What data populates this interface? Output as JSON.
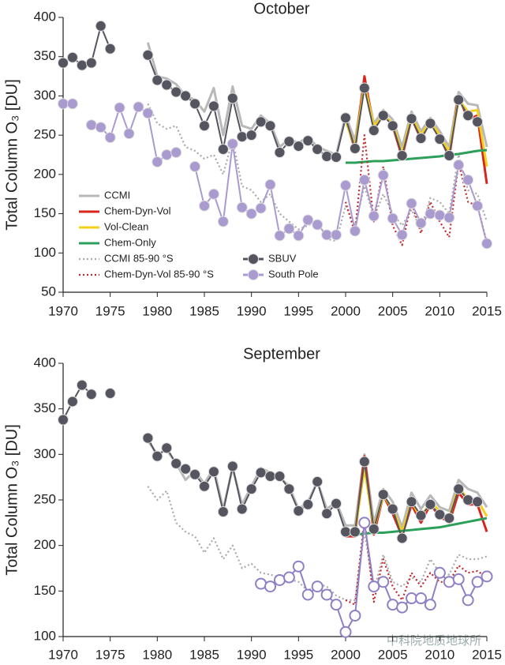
{
  "chart_data": [
    {
      "type": "line",
      "title": "October",
      "ylabel": "Total Column O₃ [DU]",
      "xlim": [
        1970,
        2015
      ],
      "xticks": [
        1970,
        1975,
        1980,
        1985,
        1990,
        1995,
        2000,
        2005,
        2010,
        2015
      ],
      "ylim": [
        50,
        400
      ],
      "yticks": [
        50,
        100,
        150,
        200,
        250,
        300,
        350,
        400
      ],
      "legend": "lower left",
      "series": [
        {
          "name": "CCMI",
          "color": "#b8b8b8",
          "x": [
            1979,
            1980,
            1981,
            1982,
            1983,
            1984,
            1985,
            1986,
            1987,
            1988,
            1989,
            1990,
            1991,
            1992,
            1993,
            1994,
            1995,
            1996,
            1997,
            1998,
            1999,
            2000,
            2001,
            2002,
            2003,
            2004,
            2005,
            2006,
            2007,
            2008,
            2009,
            2010,
            2011,
            2012,
            2013,
            2014,
            2015
          ],
          "values": [
            368,
            325,
            322,
            315,
            300,
            295,
            280,
            310,
            250,
            312,
            262,
            258,
            275,
            265,
            235,
            245,
            240,
            248,
            235,
            230,
            225,
            275,
            243,
            320,
            265,
            282,
            270,
            235,
            280,
            255,
            272,
            255,
            235,
            305,
            290,
            288,
            235
          ]
        },
        {
          "name": "Chem-Dyn-Vol",
          "color": "#d7261e",
          "x": [
            2000,
            2001,
            2002,
            2003,
            2004,
            2005,
            2006,
            2007,
            2008,
            2009,
            2010,
            2011,
            2012,
            2013,
            2014,
            2015
          ],
          "values": [
            270,
            232,
            325,
            258,
            278,
            262,
            222,
            272,
            245,
            268,
            248,
            222,
            300,
            270,
            275,
            188
          ]
        },
        {
          "name": "Vol-Clean",
          "color": "#f2d01c",
          "x": [
            2000,
            2001,
            2002,
            2003,
            2004,
            2005,
            2006,
            2007,
            2008,
            2009,
            2010,
            2011,
            2012,
            2013,
            2014,
            2015
          ],
          "values": [
            268,
            235,
            315,
            262,
            275,
            266,
            226,
            275,
            250,
            268,
            250,
            228,
            295,
            280,
            282,
            210
          ]
        },
        {
          "name": "Chem-Only",
          "color": "#2ca05a",
          "x": [
            2000,
            2001,
            2002,
            2003,
            2004,
            2005,
            2006,
            2007,
            2008,
            2009,
            2010,
            2011,
            2012,
            2013,
            2014,
            2015
          ],
          "values": [
            215,
            215,
            216,
            217,
            217,
            218,
            219,
            220,
            221,
            222,
            223,
            225,
            226,
            228,
            230,
            231
          ]
        },
        {
          "name": "CCMI 85-90 °S",
          "color": "#aaaaaa",
          "dashed": true,
          "x": [
            1979,
            1980,
            1981,
            1982,
            1983,
            1984,
            1985,
            1986,
            1987,
            1988,
            1989,
            1990,
            1991,
            1992,
            1993,
            1994,
            1995,
            1996,
            1997,
            1998,
            1999,
            2000,
            2001,
            2002,
            2003,
            2004,
            2005,
            2006,
            2007,
            2008,
            2009,
            2010,
            2011,
            2012,
            2013,
            2014,
            2015
          ],
          "values": [
            290,
            265,
            258,
            262,
            235,
            230,
            220,
            225,
            200,
            245,
            185,
            180,
            165,
            175,
            150,
            140,
            130,
            135,
            140,
            118,
            115,
            160,
            135,
            185,
            145,
            175,
            150,
            135,
            155,
            130,
            170,
            165,
            150,
            225,
            180,
            175,
            140
          ]
        },
        {
          "name": "Chem-Dyn-Vol 85-90 °S",
          "color": "#c0282d",
          "dashed": true,
          "x": [
            2000,
            2001,
            2002,
            2003,
            2004,
            2005,
            2006,
            2007,
            2008,
            2009,
            2010,
            2011,
            2012,
            2013,
            2014,
            2015
          ],
          "values": [
            165,
            125,
            250,
            140,
            210,
            135,
            110,
            165,
            125,
            165,
            140,
            120,
            215,
            165,
            160,
            113
          ]
        },
        {
          "name": "SBUV",
          "color": "#555560",
          "marker": "filled",
          "x": [
            1970,
            1971,
            1972,
            1973,
            1974,
            1975,
            1976,
            1979,
            1980,
            1981,
            1982,
            1983,
            1984,
            1985,
            1986,
            1987,
            1988,
            1989,
            1990,
            1991,
            1992,
            1993,
            1994,
            1995,
            1996,
            1997,
            1998,
            1999,
            2000,
            2001,
            2002,
            2003,
            2004,
            2005,
            2006,
            2007,
            2008,
            2009,
            2010,
            2011,
            2012,
            2013,
            2014
          ],
          "values": [
            342,
            349,
            339,
            342,
            389,
            360,
            null,
            352,
            320,
            314,
            305,
            300,
            290,
            262,
            287,
            232,
            297,
            248,
            250,
            267,
            262,
            228,
            242,
            236,
            243,
            232,
            223,
            222,
            272,
            233,
            310,
            256,
            275,
            262,
            224,
            271,
            246,
            265,
            245,
            224,
            295,
            275,
            267
          ]
        },
        {
          "name": "South Pole",
          "color": "#a99ad0",
          "marker": "filled",
          "x": [
            1970,
            1971,
            1972,
            1973,
            1974,
            1975,
            1976,
            1977,
            1978,
            1979,
            1980,
            1981,
            1982,
            1983,
            1984,
            1985,
            1986,
            1987,
            1988,
            1989,
            1990,
            1991,
            1992,
            1993,
            1994,
            1995,
            1996,
            1997,
            1998,
            1999,
            2000,
            2001,
            2002,
            2003,
            2004,
            2005,
            2006,
            2007,
            2008,
            2009,
            2010,
            2011,
            2012,
            2013,
            2014,
            2015
          ],
          "values": [
            290,
            290,
            null,
            263,
            260,
            247,
            285,
            252,
            286,
            278,
            216,
            225,
            228,
            null,
            210,
            160,
            175,
            140,
            239,
            158,
            150,
            157,
            187,
            122,
            131,
            122,
            142,
            136,
            123,
            123,
            186,
            128,
            193,
            147,
            199,
            144,
            123,
            163,
            138,
            150,
            148,
            145,
            212,
            193,
            160,
            112
          ]
        }
      ]
    },
    {
      "type": "line",
      "title": "September",
      "ylabel": "Total Column O₃ [DU]",
      "xlim": [
        1970,
        2015
      ],
      "xticks": [
        1970,
        1975,
        1980,
        1985,
        1990,
        1995,
        2000,
        2005,
        2010,
        2015
      ],
      "ylim": [
        100,
        400
      ],
      "yticks": [
        100,
        150,
        200,
        250,
        300,
        350,
        400
      ],
      "series": [
        {
          "color": "#b8b8b8",
          "x": [
            1979,
            1980,
            1981,
            1982,
            1983,
            1984,
            1985,
            1986,
            1987,
            1988,
            1989,
            1990,
            1991,
            1992,
            1993,
            1994,
            1995,
            1996,
            1997,
            1998,
            1999,
            2000,
            2001,
            2002,
            2003,
            2004,
            2005,
            2006,
            2007,
            2008,
            2009,
            2010,
            2011,
            2012,
            2013,
            2014,
            2015
          ],
          "values": [
            315,
            300,
            305,
            290,
            272,
            282,
            268,
            285,
            240,
            285,
            245,
            265,
            285,
            280,
            275,
            265,
            240,
            248,
            270,
            240,
            248,
            222,
            222,
            300,
            225,
            262,
            248,
            220,
            258,
            240,
            255,
            242,
            238,
            272,
            262,
            258,
            242
          ]
        },
        {
          "color": "#d7261e",
          "x": [
            2000,
            2001,
            2002,
            2003,
            2004,
            2005,
            2006,
            2007,
            2008,
            2009,
            2010,
            2011,
            2012,
            2013,
            2014,
            2015
          ],
          "values": [
            210,
            210,
            298,
            212,
            255,
            235,
            210,
            245,
            225,
            245,
            232,
            225,
            258,
            245,
            245,
            215
          ]
        },
        {
          "color": "#f2d01c",
          "x": [
            2000,
            2001,
            2002,
            2003,
            2004,
            2005,
            2006,
            2007,
            2008,
            2009,
            2010,
            2011,
            2012,
            2013,
            2014,
            2015
          ],
          "values": [
            215,
            215,
            285,
            218,
            255,
            240,
            215,
            248,
            230,
            248,
            238,
            230,
            265,
            250,
            250,
            232
          ]
        },
        {
          "color": "#2ca05a",
          "x": [
            2000,
            2001,
            2002,
            2003,
            2004,
            2005,
            2006,
            2007,
            2008,
            2009,
            2010,
            2011,
            2012,
            2013,
            2014,
            2015
          ],
          "values": [
            212,
            212,
            213,
            214,
            214,
            215,
            216,
            217,
            218,
            219,
            220,
            222,
            224,
            226,
            228,
            230
          ]
        },
        {
          "color": "#aaaaaa",
          "dashed": true,
          "x": [
            1979,
            1980,
            1981,
            1982,
            1983,
            1984,
            1985,
            1986,
            1987,
            1988,
            1989,
            1990,
            1991,
            1992,
            1993,
            1994,
            1995,
            1996,
            1997,
            1998,
            1999,
            2000,
            2001,
            2002,
            2003,
            2004,
            2005,
            2006,
            2007,
            2008,
            2009,
            2010,
            2011,
            2012,
            2013,
            2014,
            2015
          ],
          "values": [
            265,
            250,
            260,
            225,
            215,
            210,
            192,
            208,
            185,
            200,
            175,
            180,
            170,
            168,
            165,
            163,
            160,
            150,
            158,
            155,
            145,
            140,
            140,
            215,
            150,
            190,
            160,
            155,
            165,
            160,
            185,
            170,
            168,
            190,
            185,
            185,
            188
          ]
        },
        {
          "color": "#c0282d",
          "dashed": true,
          "x": [
            2000,
            2001,
            2002,
            2003,
            2004,
            2005,
            2006,
            2007,
            2008,
            2009,
            2010,
            2011,
            2012,
            2013,
            2014,
            2015
          ],
          "values": [
            140,
            135,
            230,
            138,
            185,
            155,
            140,
            170,
            155,
            170,
            160,
            160,
            178,
            170,
            172,
            165
          ]
        },
        {
          "color": "#555560",
          "marker": "filled",
          "x": [
            1970,
            1971,
            1972,
            1973,
            1974,
            1975,
            1976,
            1979,
            1980,
            1981,
            1982,
            1983,
            1984,
            1985,
            1986,
            1987,
            1988,
            1989,
            1990,
            1991,
            1992,
            1993,
            1994,
            1995,
            1996,
            1997,
            1998,
            1999,
            2000,
            2001,
            2002,
            2003,
            2004,
            2005,
            2006,
            2007,
            2008,
            2009,
            2010,
            2011,
            2012,
            2013,
            2014
          ],
          "values": [
            338,
            358,
            376,
            366,
            null,
            367,
            null,
            318,
            298,
            307,
            290,
            284,
            278,
            265,
            281,
            237,
            287,
            240,
            262,
            280,
            276,
            276,
            262,
            238,
            245,
            270,
            235,
            246,
            215,
            215,
            292,
            218,
            256,
            240,
            208,
            248,
            233,
            245,
            234,
            230,
            262,
            250,
            248
          ]
        },
        {
          "color": "#8f7fc4",
          "marker": "open",
          "x": [
            1991,
            1992,
            1993,
            1994,
            1995,
            1996,
            1997,
            1998,
            1999,
            2000,
            2001,
            2002,
            2003,
            2004,
            2005,
            2006,
            2007,
            2008,
            2009,
            2010,
            2011,
            2012,
            2013,
            2014,
            2015
          ],
          "values": [
            158,
            155,
            162,
            165,
            177,
            146,
            155,
            146,
            135,
            105,
            123,
            225,
            155,
            160,
            135,
            132,
            142,
            142,
            135,
            170,
            160,
            163,
            140,
            160,
            166
          ]
        }
      ]
    }
  ],
  "watermark": "中科院地质地球所"
}
